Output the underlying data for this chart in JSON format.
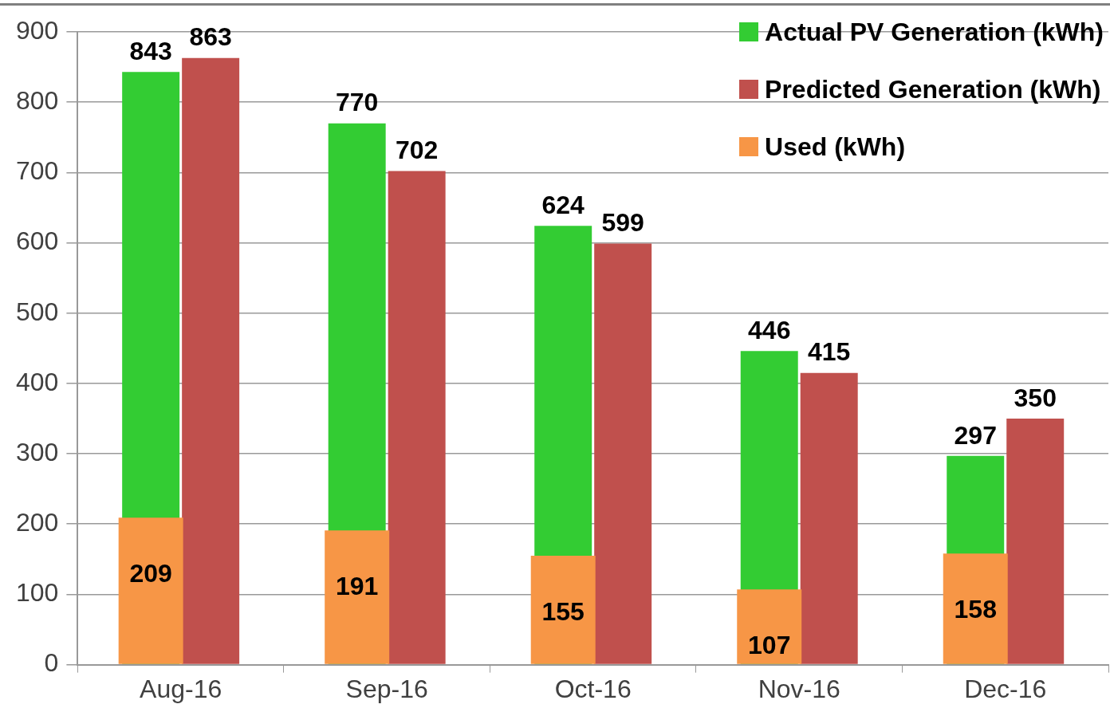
{
  "chart_data": {
    "type": "bar",
    "categories": [
      "Aug-16",
      "Sep-16",
      "Oct-16",
      "Nov-16",
      "Dec-16"
    ],
    "series": [
      {
        "name": "Actual PV Generation (kWh)",
        "color": "#33cc33",
        "values": [
          843,
          770,
          624,
          446,
          297
        ]
      },
      {
        "name": "Predicted Generation (kWh)",
        "color": "#c0504d",
        "values": [
          863,
          702,
          599,
          415,
          350
        ]
      },
      {
        "name": "Used (kWh)",
        "color": "#f79646",
        "values": [
          209,
          191,
          155,
          107,
          158
        ]
      }
    ],
    "ylim": [
      0,
      900
    ],
    "yticks": [
      0,
      100,
      200,
      300,
      400,
      500,
      600,
      700,
      800,
      900
    ],
    "grid": "y",
    "legend": "top right",
    "data_labels": true
  }
}
